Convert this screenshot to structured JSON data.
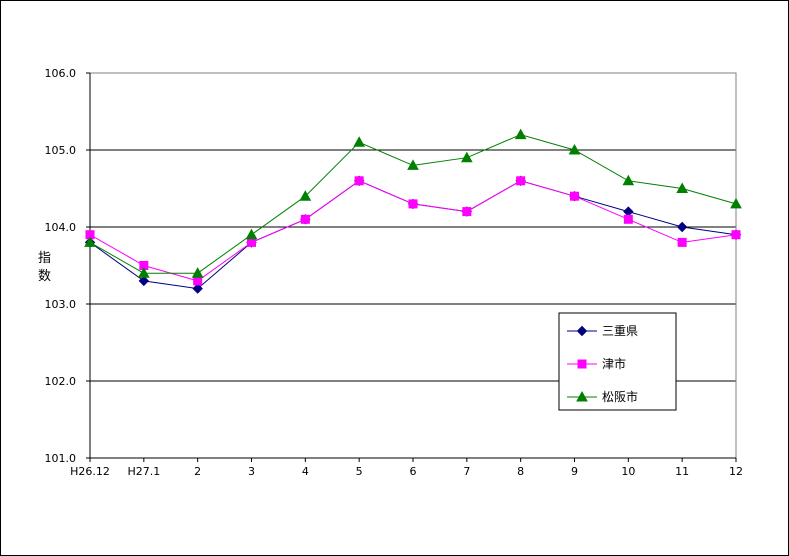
{
  "chart_data": {
    "type": "line",
    "title": "",
    "xlabel": "",
    "ylabel": "指数",
    "categories": [
      "H26.12",
      "H27.1",
      "2",
      "3",
      "4",
      "5",
      "6",
      "7",
      "8",
      "9",
      "10",
      "11",
      "12"
    ],
    "ylim": [
      101.0,
      106.0
    ],
    "yticks": [
      "101.0",
      "102.0",
      "103.0",
      "104.0",
      "105.0",
      "106.0"
    ],
    "grid": true,
    "legend_position": "lower-right",
    "series": [
      {
        "name": "三重県",
        "color": "#000080",
        "marker": "diamond",
        "values": [
          103.8,
          103.3,
          103.2,
          103.8,
          104.1,
          104.6,
          104.3,
          104.2,
          104.6,
          104.4,
          104.2,
          104.0,
          103.9
        ]
      },
      {
        "name": "津市",
        "color": "#ff00ff",
        "marker": "square",
        "values": [
          103.9,
          103.5,
          103.3,
          103.8,
          104.1,
          104.6,
          104.3,
          104.2,
          104.6,
          104.4,
          104.1,
          103.8,
          103.9
        ]
      },
      {
        "name": "松阪市",
        "color": "#008000",
        "marker": "triangle",
        "values": [
          103.8,
          103.4,
          103.4,
          103.9,
          104.4,
          105.1,
          104.8,
          104.9,
          105.2,
          105.0,
          104.6,
          104.5,
          104.3
        ]
      }
    ]
  }
}
